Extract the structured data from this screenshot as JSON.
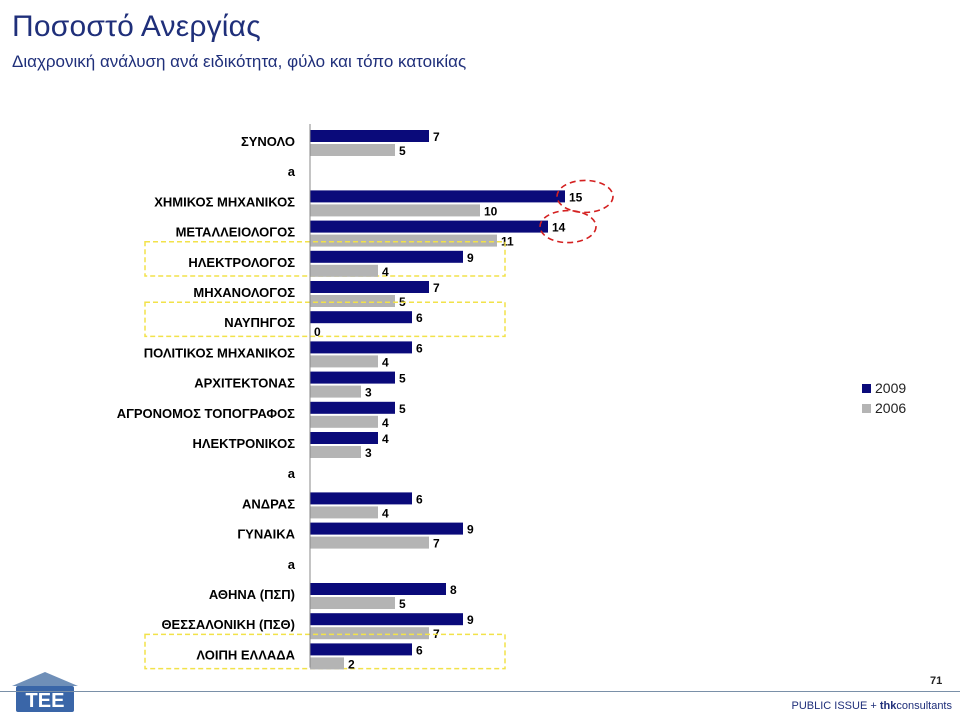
{
  "header": {
    "title": "Ποσοστό Ανεργίας",
    "subtitle": "Διαχρονική ανάλυση ανά ειδικότητα, φύλο και τόπο κατοικίας"
  },
  "chart_data": {
    "type": "bar",
    "orientation": "horizontal",
    "categories": [
      "ΣΥΝΟΛΟ",
      "a",
      "ΧΗΜΙΚΟΣ ΜΗΧΑΝΙΚΟΣ",
      "ΜΕΤΑΛΛΕΙΟΛΟΓΟΣ",
      "ΗΛΕΚΤΡΟΛΟΓΟΣ",
      "ΜΗΧΑΝΟΛΟΓΟΣ",
      "ΝΑΥΠΗΓΟΣ",
      "ΠΟΛΙΤΙΚΟΣ ΜΗΧΑΝΙΚΟΣ",
      "ΑΡΧΙΤΕΚΤΟΝΑΣ",
      "ΑΓΡΟΝΟΜΟΣ ΤΟΠΟΓΡΑΦΟΣ",
      "ΗΛΕΚΤΡΟΝΙΚΟΣ",
      "a",
      "ΑΝΔΡΑΣ",
      "ΓΥΝΑΙΚΑ",
      "a",
      "ΑΘΗΝΑ (ΠΣΠ)",
      "ΘΕΣΣΑΛΟΝΙΚΗ (ΠΣΘ)",
      "ΛΟΙΠΗ ΕΛΛΑΔΑ"
    ],
    "series": [
      {
        "name": "2009",
        "color": "#0a0a7a",
        "values": [
          7,
          null,
          15,
          14,
          9,
          7,
          6,
          6,
          5,
          5,
          4,
          null,
          6,
          9,
          null,
          8,
          9,
          6
        ]
      },
      {
        "name": "2006",
        "color": "#b4b4b4",
        "values": [
          5,
          null,
          10,
          11,
          4,
          5,
          0,
          4,
          3,
          4,
          3,
          null,
          4,
          7,
          null,
          5,
          7,
          2
        ]
      }
    ],
    "xlim": [
      0,
      15
    ],
    "grid": false,
    "legend": "right",
    "highlighted_categories": [
      "ΗΛΕΚΤΡΟΛΟΓΟΣ",
      "ΝΑΥΠΗΓΟΣ",
      "ΛΟΙΠΗ ΕΛΛΑΔΑ"
    ],
    "circled_values": [
      {
        "category": "ΧΗΜΙΚΟΣ ΜΗΧΑΝΙΚΟΣ",
        "series": "2009"
      },
      {
        "category": "ΜΕΤΑΛΛΕΙΟΛΟΓΟΣ",
        "series": "2009"
      }
    ],
    "highlight_color": "#f2e24a",
    "circle_color": "#d42020"
  },
  "footer": {
    "page_number": "71",
    "brand_regular": "PUBLIC ISSUE + ",
    "brand_bold": "thk",
    "brand_tail": "consultants",
    "logo_text": "ΤΕΕ"
  }
}
